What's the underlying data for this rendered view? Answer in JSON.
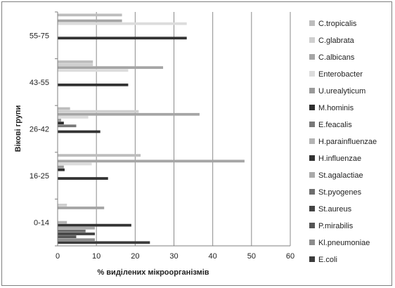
{
  "chart_data": {
    "type": "bar",
    "orientation": "horizontal",
    "categories": [
      "0-14",
      "16-25",
      "26-42",
      "43-55",
      "55-75"
    ],
    "xlabel": "% виділених мікроорганізмів",
    "ylabel": "Вікові групи",
    "xlim": [
      0,
      60
    ],
    "xticks": [
      0,
      10,
      20,
      30,
      40,
      50,
      60
    ],
    "grid": "vertical",
    "legend_position": "right",
    "series": [
      {
        "name": "E.coli",
        "color": "#3c3c3c",
        "values": [
          23.8,
          0,
          0,
          0,
          0
        ]
      },
      {
        "name": "Kl.pneumoniae",
        "color": "#8c8c8c",
        "values": [
          9.6,
          0,
          0,
          0,
          0
        ]
      },
      {
        "name": "P.mirabilis",
        "color": "#555555",
        "values": [
          4.8,
          0,
          0,
          0,
          0
        ]
      },
      {
        "name": "St.aureus",
        "color": "#444444",
        "values": [
          9.6,
          0,
          0,
          0,
          0
        ]
      },
      {
        "name": "St.pyogenes",
        "color": "#6e6e6e",
        "values": [
          7.2,
          0,
          0,
          0,
          0
        ]
      },
      {
        "name": "St.agalactiae",
        "color": "#aaaaaa",
        "values": [
          9.6,
          0,
          0,
          0,
          0
        ]
      },
      {
        "name": "H.influenzae",
        "color": "#333333",
        "values": [
          19.0,
          13.0,
          11.0,
          18.2,
          33.3
        ]
      },
      {
        "name": "H.parainfluenzae",
        "color": "#b4b4b4",
        "values": [
          2.4,
          0,
          0,
          0,
          0
        ]
      },
      {
        "name": "E.feacalis",
        "color": "#787878",
        "values": [
          0,
          0,
          4.8,
          0,
          0
        ]
      },
      {
        "name": "M.hominis",
        "color": "#2f2f2f",
        "values": [
          0,
          1.8,
          1.6,
          0,
          0
        ]
      },
      {
        "name": "U.urealyticum",
        "color": "#9a9a9a",
        "values": [
          0,
          1.6,
          0.9,
          0,
          0
        ]
      },
      {
        "name": "Enterobacter",
        "color": "#dcdcdc",
        "values": [
          0,
          8.8,
          7.9,
          18.2,
          33.3
        ]
      },
      {
        "name": "C.albicans",
        "color": "#a5a5a5",
        "values": [
          12.0,
          48.2,
          36.6,
          27.2,
          16.6
        ]
      },
      {
        "name": "C.glabrata",
        "color": "#cfcfcf",
        "values": [
          2.4,
          0,
          20.9,
          9.1,
          0
        ]
      },
      {
        "name": "C.tropicalis",
        "color": "#bdbdbd",
        "values": [
          0,
          21.4,
          3.2,
          9.1,
          16.6
        ]
      }
    ]
  }
}
